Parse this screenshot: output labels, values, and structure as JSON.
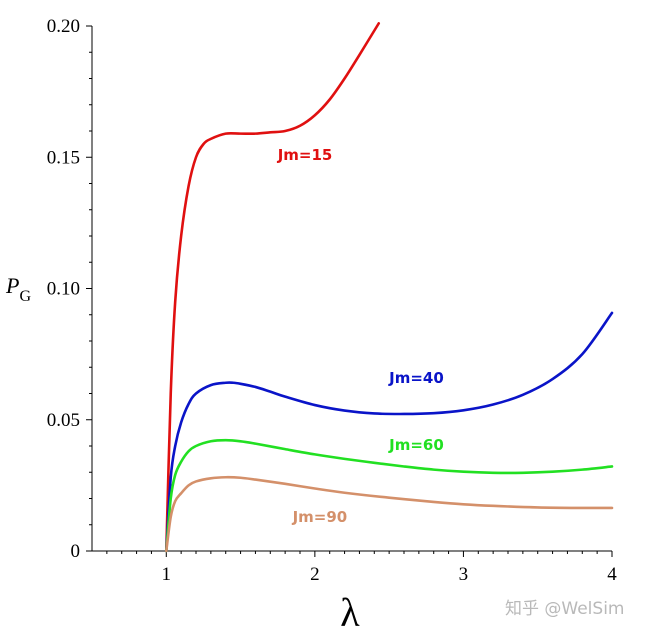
{
  "chart_data": {
    "type": "line",
    "title": "",
    "xlabel": "λ",
    "ylabel_main": "P",
    "ylabel_sub": "G",
    "xlim": [
      0.5,
      4
    ],
    "ylim": [
      0,
      0.2
    ],
    "x_ticks": [
      1,
      2,
      3,
      4
    ],
    "x_tick_labels": [
      "1",
      "2",
      "3",
      "4"
    ],
    "y_ticks": [
      0,
      0.05,
      0.1,
      0.15,
      0.2
    ],
    "y_tick_labels": [
      "0",
      "0.05",
      "0.10",
      "0.15",
      "0.20"
    ],
    "grid": false,
    "legend": "inline labels",
    "series": [
      {
        "name": "Jm=15",
        "color": "#e01010",
        "label_at": [
          1.75,
          0.149
        ],
        "x": [
          1.0,
          1.03,
          1.06,
          1.1,
          1.15,
          1.2,
          1.25,
          1.3,
          1.4,
          1.5,
          1.6,
          1.7,
          1.8,
          1.9,
          2.0,
          2.1,
          2.2,
          2.3,
          2.43
        ],
        "y": [
          0.0,
          0.06,
          0.095,
          0.12,
          0.139,
          0.15,
          0.155,
          0.157,
          0.159,
          0.159,
          0.159,
          0.1595,
          0.16,
          0.162,
          0.166,
          0.172,
          0.18,
          0.189,
          0.201
        ]
      },
      {
        "name": "Jm=40",
        "color": "#0a14c8",
        "label_at": [
          2.5,
          0.064
        ],
        "x": [
          1.0,
          1.03,
          1.06,
          1.1,
          1.15,
          1.2,
          1.3,
          1.4,
          1.45,
          1.5,
          1.6,
          1.7,
          1.8,
          2.0,
          2.2,
          2.4,
          2.6,
          2.8,
          3.0,
          3.2,
          3.4,
          3.6,
          3.8,
          4.0
        ],
        "y": [
          0.0,
          0.028,
          0.04,
          0.049,
          0.056,
          0.06,
          0.0632,
          0.0641,
          0.0641,
          0.0637,
          0.0625,
          0.0607,
          0.0588,
          0.0556,
          0.0535,
          0.0524,
          0.0522,
          0.0525,
          0.0536,
          0.0558,
          0.0595,
          0.0655,
          0.075,
          0.0907
        ]
      },
      {
        "name": "Jm=60",
        "color": "#22e022",
        "label_at": [
          2.5,
          0.0385
        ],
        "x": [
          1.0,
          1.03,
          1.06,
          1.1,
          1.15,
          1.2,
          1.3,
          1.4,
          1.5,
          1.6,
          1.8,
          2.0,
          2.2,
          2.4,
          2.6,
          2.8,
          3.0,
          3.2,
          3.4,
          3.6,
          3.8,
          4.0
        ],
        "y": [
          0.0,
          0.02,
          0.029,
          0.034,
          0.038,
          0.04,
          0.0418,
          0.0422,
          0.0418,
          0.0409,
          0.0388,
          0.0368,
          0.0351,
          0.0336,
          0.0322,
          0.031,
          0.0302,
          0.0298,
          0.0298,
          0.0302,
          0.031,
          0.0322
        ]
      },
      {
        "name": "Jm=90",
        "color": "#d4906a",
        "label_at": [
          1.85,
          0.011
        ],
        "x": [
          1.0,
          1.03,
          1.06,
          1.1,
          1.15,
          1.2,
          1.3,
          1.4,
          1.5,
          1.6,
          1.8,
          2.0,
          2.2,
          2.5,
          2.8,
          3.0,
          3.2,
          3.5,
          3.8,
          4.0
        ],
        "y": [
          0.0,
          0.013,
          0.019,
          0.022,
          0.025,
          0.0265,
          0.0277,
          0.0281,
          0.0279,
          0.0272,
          0.0256,
          0.0238,
          0.0222,
          0.0203,
          0.0187,
          0.0178,
          0.0172,
          0.0166,
          0.0164,
          0.0164
        ]
      }
    ]
  },
  "watermark": "知乎 @WelSim"
}
